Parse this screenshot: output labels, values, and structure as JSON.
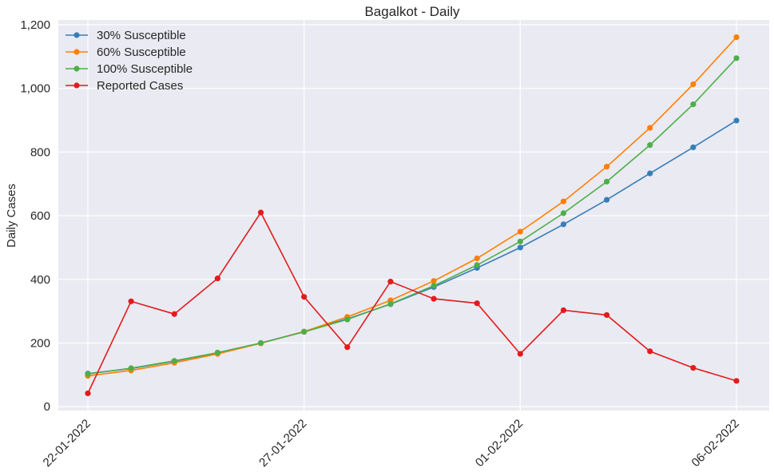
{
  "chart_data": {
    "type": "line",
    "title": "Bagalkot - Daily",
    "ylabel": "Daily Cases",
    "xlabel": "",
    "x": [
      "22-01-2022",
      "23-01-2022",
      "24-01-2022",
      "25-01-2022",
      "26-01-2022",
      "27-01-2022",
      "28-01-2022",
      "29-01-2022",
      "30-01-2022",
      "31-01-2022",
      "01-02-2022",
      "02-02-2022",
      "03-02-2022",
      "04-02-2022",
      "05-02-2022",
      "06-02-2022"
    ],
    "xticks": [
      "22-01-2022",
      "27-01-2022",
      "01-02-2022",
      "06-02-2022"
    ],
    "yticks": [
      "0",
      "200",
      "400",
      "600",
      "800",
      "1,000",
      "1,200"
    ],
    "ylim": [
      -12,
      1215
    ],
    "grid": true,
    "legend_position": "top-left",
    "series": [
      {
        "name": "30% Susceptible",
        "color": "#377eb8",
        "values": [
          104,
          120,
          143,
          169,
          200,
          236,
          276,
          322,
          376,
          436,
          500,
          573,
          650,
          733,
          815,
          899
        ]
      },
      {
        "name": "60% Susceptible",
        "color": "#ff7f00",
        "values": [
          97,
          114,
          138,
          166,
          199,
          236,
          282,
          334,
          395,
          466,
          550,
          645,
          754,
          876,
          1013,
          1161
        ]
      },
      {
        "name": "100% Susceptible",
        "color": "#4daf4a",
        "values": [
          103,
          121,
          144,
          170,
          200,
          235,
          274,
          323,
          380,
          445,
          519,
          608,
          707,
          822,
          950,
          1095
        ]
      },
      {
        "name": "Reported Cases",
        "color": "#e41a1c",
        "values": [
          42,
          331,
          291,
          403,
          610,
          345,
          187,
          393,
          339,
          325,
          166,
          303,
          288,
          174,
          122,
          81
        ]
      }
    ]
  }
}
